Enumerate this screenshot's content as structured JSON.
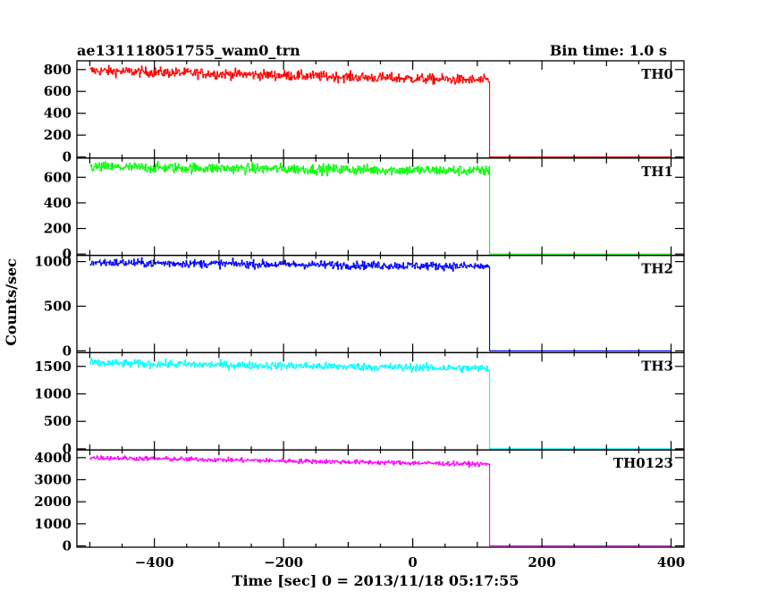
{
  "header": {
    "title": "ae131118051755_wam0_trn",
    "bin_time": "Bin time: 1.0 s"
  },
  "axes": {
    "xlabel": "Time [sec] 0 = 2013/11/18 05:17:55",
    "ylabel": "Counts/sec"
  },
  "chart_data": {
    "type": "line",
    "xlim": [
      -520,
      420
    ],
    "x_ticks": [
      -400,
      -200,
      0,
      200,
      400
    ],
    "x_tick_labels": [
      "−400",
      "−200",
      "0",
      "200",
      "400"
    ],
    "bin_width": 1.0,
    "drop_time": 119,
    "x_end": 400,
    "series": [
      {
        "name": "TH0",
        "color": "#ff0000",
        "ylim": [
          -10,
          880
        ],
        "yticks": [
          0,
          200,
          400,
          600,
          800
        ],
        "start_level": 790,
        "end_level": 700,
        "noise": 45,
        "after_level": 0
      },
      {
        "name": "TH1",
        "color": "#00ff00",
        "ylim": [
          -10,
          750
        ],
        "yticks": [
          0,
          200,
          400,
          600
        ],
        "start_level": 680,
        "end_level": 650,
        "noise": 40,
        "after_level": 0
      },
      {
        "name": "TH2",
        "color": "#0000ff",
        "ylim": [
          -20,
          1070
        ],
        "yticks": [
          0,
          500,
          1000
        ],
        "start_level": 990,
        "end_level": 945,
        "noise": 45,
        "after_level": 0
      },
      {
        "name": "TH3",
        "color": "#00ffff",
        "ylim": [
          -20,
          1750
        ],
        "yticks": [
          0,
          500,
          1000,
          1500
        ],
        "start_level": 1560,
        "end_level": 1460,
        "noise": 70,
        "after_level": 0
      },
      {
        "name": "TH0123",
        "color": "#ff00ff",
        "ylim": [
          -60,
          4350
        ],
        "yticks": [
          0,
          1000,
          2000,
          3000,
          4000
        ],
        "start_level": 4000,
        "end_level": 3700,
        "noise": 100,
        "after_level": 0
      }
    ]
  }
}
